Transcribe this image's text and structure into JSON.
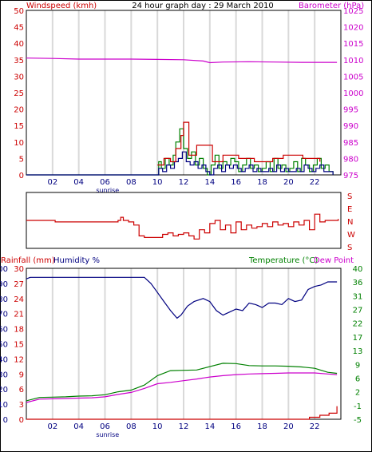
{
  "chart_data": [
    {
      "type": "line",
      "title": "24 hour graph day : 29 March 2010",
      "left_axis_label": "Windspeed (kmh)",
      "right_axis_label": "Barometer (hPa)",
      "left_ylim": [
        0,
        50
      ],
      "right_ylim": [
        975,
        1025
      ],
      "left_ticks": [
        "0",
        "5",
        "10",
        "15",
        "20",
        "25",
        "30",
        "35",
        "40",
        "45",
        "50"
      ],
      "right_ticks": [
        "975",
        "980",
        "985",
        "990",
        "995",
        "1000",
        "1005",
        "1010",
        "1015",
        "1020",
        "1025"
      ],
      "x_ticks": [
        "02",
        "04",
        "06",
        "08",
        "10",
        "12",
        "14",
        "16",
        "18",
        "20",
        "22"
      ],
      "sunrise_label": "sunrise",
      "xlim_hours": [
        0,
        24
      ],
      "grid": true,
      "series": [
        {
          "color": "#cc00cc",
          "axis": "right",
          "x": [
            0,
            2,
            4,
            6,
            8,
            10,
            12,
            13.5,
            14,
            15,
            17,
            19,
            21,
            23.7
          ],
          "values": [
            1010.5,
            1010.4,
            1010.2,
            1010.2,
            1010.2,
            1010.1,
            1010.0,
            1009.6,
            1009.1,
            1009.3,
            1009.4,
            1009.3,
            1009.2,
            1009.2
          ]
        },
        {
          "color": "#008000",
          "axis": "left",
          "x": [
            0,
            9.8,
            10.1,
            10.3,
            10.6,
            10.9,
            11.2,
            11.4,
            11.7,
            12.0,
            12.3,
            12.6,
            12.9,
            13.2,
            13.5,
            13.8,
            14.1,
            14.4,
            14.7,
            15.0,
            15.3,
            15.6,
            15.9,
            16.2,
            16.5,
            16.8,
            17.1,
            17.4,
            17.7,
            18.0,
            18.3,
            18.6,
            18.9,
            19.2,
            19.5,
            19.8,
            20.1,
            20.4,
            20.7,
            21.0,
            21.3,
            21.6,
            21.9,
            22.2,
            22.5,
            22.8,
            23.1,
            23.4
          ],
          "values": [
            0,
            0,
            4,
            2,
            5,
            3,
            6,
            10,
            14,
            8,
            5,
            7,
            3,
            5,
            2,
            0,
            3,
            6,
            2,
            4,
            3,
            5,
            4,
            1,
            3,
            5,
            2,
            3,
            1,
            2,
            4,
            1,
            5,
            2,
            3,
            1,
            2,
            4,
            1,
            5,
            3,
            1,
            3,
            5,
            2,
            3,
            1,
            0
          ]
        },
        {
          "color": "#000080",
          "axis": "left",
          "x": [
            0,
            9.8,
            10.1,
            10.4,
            10.7,
            11.0,
            11.3,
            11.6,
            11.9,
            12.2,
            12.5,
            12.8,
            13.1,
            13.4,
            13.7,
            14.0,
            14.3,
            14.6,
            14.9,
            15.2,
            15.5,
            15.8,
            16.1,
            16.4,
            16.7,
            17.0,
            17.3,
            17.6,
            17.9,
            18.2,
            18.5,
            18.8,
            19.1,
            19.4,
            19.7,
            20.0,
            20.3,
            20.6,
            20.9,
            21.2,
            21.5,
            21.8,
            22.1,
            22.4,
            22.7,
            23.0,
            23.4
          ],
          "values": [
            0,
            0,
            2,
            1,
            3,
            2,
            4,
            5,
            7,
            4,
            3,
            4,
            2,
            3,
            1,
            0,
            2,
            3,
            1,
            3,
            2,
            3,
            2,
            1,
            2,
            3,
            1,
            2,
            1,
            1,
            2,
            1,
            3,
            1,
            2,
            1,
            1,
            2,
            1,
            3,
            2,
            1,
            2,
            3,
            1,
            1,
            0
          ]
        },
        {
          "color": "#cc0000",
          "axis": "left",
          "x": [
            10.0,
            10.5,
            11.0,
            11.4,
            11.8,
            12.0,
            12.4,
            13.0,
            14.2,
            15.0,
            16.2,
            17.4,
            18.8,
            19.6,
            21.1,
            22.4
          ],
          "values": [
            3,
            5,
            4,
            8,
            12,
            16,
            6,
            9,
            4,
            6,
            5,
            4,
            5,
            6,
            5,
            4
          ]
        }
      ]
    },
    {
      "type": "line",
      "right_axis_labels": [
        "S",
        "E",
        "N",
        "W",
        "S"
      ],
      "ylim_degrees": [
        0,
        360
      ],
      "xlim_hours": [
        0,
        24
      ],
      "series": [
        {
          "color": "#cc0000",
          "x": [
            0,
            1.8,
            2.2,
            7.0,
            7.2,
            7.4,
            7.8,
            8.2,
            8.6,
            9.0,
            10.0,
            10.4,
            10.8,
            11.2,
            11.6,
            12.0,
            12.4,
            12.8,
            13.2,
            13.6,
            14.0,
            14.4,
            14.8,
            15.2,
            15.6,
            16.0,
            16.4,
            16.8,
            17.2,
            17.6,
            18.0,
            18.4,
            18.8,
            19.2,
            19.6,
            20.0,
            20.4,
            20.8,
            21.2,
            21.6,
            22.0,
            22.4,
            22.8,
            23.2,
            23.8
          ],
          "values": [
            180,
            180,
            170,
            180,
            200,
            180,
            170,
            150,
            80,
            70,
            70,
            90,
            100,
            80,
            90,
            100,
            80,
            60,
            120,
            100,
            160,
            180,
            120,
            150,
            100,
            170,
            120,
            150,
            130,
            140,
            160,
            140,
            170,
            150,
            160,
            140,
            170,
            150,
            180,
            120,
            220,
            170,
            180,
            180,
            190
          ]
        }
      ]
    },
    {
      "type": "line",
      "left_axis_labels": [
        "Rainfall (mm)",
        "Humidity %"
      ],
      "right_axis_labels": [
        "Temperature (°C)",
        "Dew Point"
      ],
      "rainfall_ticks": [
        "0",
        "3",
        "6",
        "9",
        "12",
        "15",
        "18",
        "21",
        "24",
        "27",
        "30"
      ],
      "humidity_ticks": [
        "0",
        "10",
        "20",
        "30",
        "40",
        "50",
        "60",
        "70",
        "80",
        "90",
        "100"
      ],
      "temp_ticks": [
        "-5",
        "-1",
        "2",
        "6",
        "9",
        "13",
        "17",
        "22",
        "27",
        "31",
        "36",
        "40"
      ],
      "x_ticks": [
        "02",
        "04",
        "06",
        "08",
        "10",
        "12",
        "14",
        "16",
        "18",
        "20",
        "22"
      ],
      "sunrise_label": "sunrise",
      "xlim_hours": [
        0,
        24
      ],
      "series": [
        {
          "name": "Humidity %",
          "color": "#000080",
          "x": [
            0,
            0.3,
            1,
            2,
            3,
            4,
            5,
            6,
            7,
            8,
            9,
            9.5,
            10.0,
            10.5,
            11.0,
            11.5,
            11.8,
            12.3,
            12.8,
            13.5,
            14.0,
            14.5,
            15.0,
            15.5,
            16.0,
            16.5,
            17.0,
            17.5,
            18.0,
            18.5,
            19.0,
            19.5,
            20.0,
            20.5,
            21.0,
            21.5,
            22.0,
            22.5,
            23.0,
            23.7
          ],
          "values": [
            93,
            94,
            94,
            94,
            94,
            94,
            94,
            94,
            94,
            94,
            94,
            90,
            84,
            78,
            72,
            67,
            69,
            75,
            78,
            80,
            78,
            72,
            69,
            71,
            73,
            72,
            77,
            76,
            74,
            77,
            77,
            76,
            80,
            78,
            79,
            86,
            88,
            89,
            91,
            91
          ]
        },
        {
          "name": "Temperature (°C)",
          "color": "#008000",
          "x": [
            0,
            1,
            2,
            3,
            4,
            5,
            6,
            7,
            8,
            9,
            10,
            11,
            12,
            13,
            14,
            15,
            16,
            17,
            18,
            19,
            20,
            21,
            22,
            23,
            23.7
          ],
          "values": [
            0.5,
            1.5,
            1.6,
            1.7,
            1.9,
            2.0,
            2.3,
            3.2,
            3.7,
            5.2,
            8.0,
            9.5,
            9.6,
            9.7,
            10.7,
            11.7,
            11.6,
            11.0,
            10.9,
            10.9,
            10.8,
            10.6,
            10.2,
            9.0,
            8.7
          ]
        },
        {
          "name": "Dew Point",
          "color": "#cc00cc",
          "x": [
            0,
            1,
            2,
            3,
            4,
            5,
            6,
            7,
            8,
            9,
            10,
            11,
            12,
            13,
            14,
            15,
            16,
            17,
            18,
            19,
            20,
            21,
            22,
            23,
            23.7
          ],
          "values": [
            0.0,
            1.0,
            1.1,
            1.2,
            1.3,
            1.4,
            1.7,
            2.4,
            3.0,
            4.2,
            5.6,
            6.0,
            6.5,
            7.0,
            7.6,
            8.0,
            8.3,
            8.5,
            8.6,
            8.7,
            8.8,
            8.8,
            8.8,
            8.5,
            8.3
          ]
        },
        {
          "name": "Rainfall (mm)",
          "color": "#cc0000",
          "x": [
            0,
            21.3,
            21.6,
            22.0,
            22.4,
            22.8,
            23.1,
            23.4,
            23.7
          ],
          "values": [
            0,
            0,
            0.4,
            0.4,
            0.8,
            0.8,
            1.2,
            1.2,
            2.6
          ]
        }
      ]
    }
  ]
}
